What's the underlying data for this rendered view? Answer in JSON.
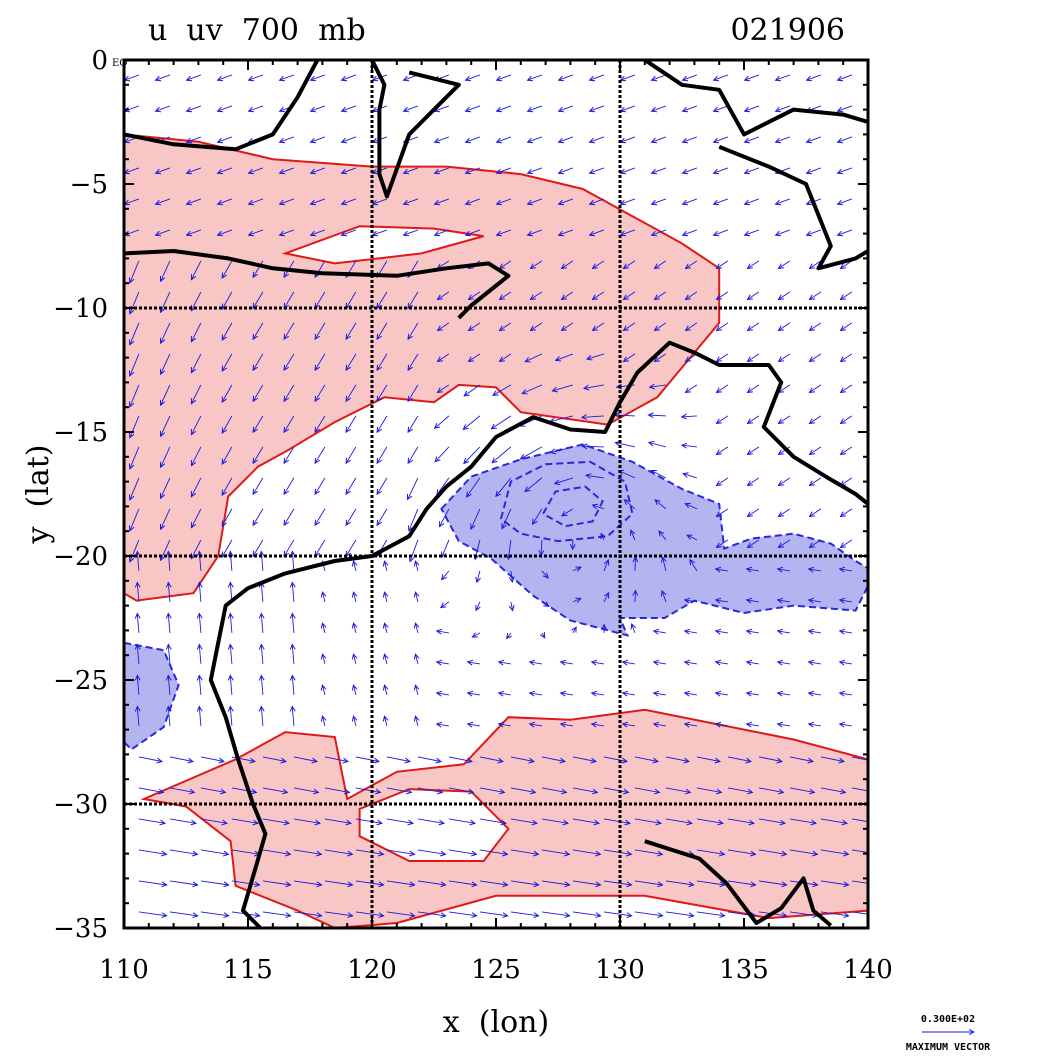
{
  "chart_data": {
    "type": "contour-vector-map",
    "title_left": "u  uv  700  mb",
    "title_right": "021906",
    "xlabel": "x  (lon)",
    "ylabel": "y  (lat)",
    "xlim": [
      110,
      140
    ],
    "ylim": [
      -35,
      0
    ],
    "x_ticks": [
      110,
      115,
      120,
      125,
      130,
      135,
      140
    ],
    "y_ticks": [
      0,
      -5,
      -10,
      -15,
      -20,
      -25,
      -30,
      -35
    ],
    "y_tick_labels": [
      "0",
      "−5",
      "−10",
      "−15",
      "−20",
      "−25",
      "−30",
      "−35"
    ],
    "x_tick_labels": [
      "110",
      "115",
      "120",
      "125",
      "130",
      "135",
      "140"
    ],
    "zero_tick_suffix": "EQ",
    "grid_lon": [
      120,
      130
    ],
    "grid_lat": [
      -10,
      -20,
      -30
    ],
    "grid": true,
    "vector_legend_value": "0.300E+02",
    "vector_legend_label": "MAXIMUM VECTOR",
    "colors": {
      "positive_fill": "#f9c6c6",
      "positive_contour": "#e01818",
      "negative_fill": "#b4b4f0",
      "negative_contour": "#2828e0",
      "coastline": "#000000",
      "vectors": "#1a1ae0"
    },
    "positive_regions": [
      {
        "name": "northern-band",
        "polygon": [
          [
            110,
            -3
          ],
          [
            113,
            -3.3
          ],
          [
            116,
            -4
          ],
          [
            120,
            -4.3
          ],
          [
            123,
            -4.3
          ],
          [
            126,
            -4.6
          ],
          [
            128.5,
            -5.2
          ],
          [
            130.5,
            -6.3
          ],
          [
            132.5,
            -7.4
          ],
          [
            134,
            -8.4
          ],
          [
            134,
            -10.6
          ],
          [
            133,
            -11.8
          ],
          [
            131.5,
            -13.6
          ],
          [
            129.5,
            -14.7
          ],
          [
            126,
            -14.2
          ],
          [
            125,
            -13.2
          ],
          [
            123.5,
            -13.1
          ],
          [
            122.5,
            -13.8
          ],
          [
            120.5,
            -13.6
          ],
          [
            118.5,
            -14.6
          ],
          [
            116.5,
            -15.8
          ],
          [
            115.4,
            -16.4
          ],
          [
            114.2,
            -17.6
          ],
          [
            113.8,
            -20
          ],
          [
            112.8,
            -21.5
          ],
          [
            110.5,
            -21.8
          ],
          [
            110,
            -21.5
          ]
        ]
      },
      {
        "name": "southern-band",
        "polygon": [
          [
            110.8,
            -29.8
          ],
          [
            114.5,
            -28.2
          ],
          [
            116.5,
            -27.1
          ],
          [
            118.5,
            -27.3
          ],
          [
            119,
            -29.8
          ],
          [
            121,
            -28.7
          ],
          [
            123.7,
            -28.4
          ],
          [
            125.5,
            -26.5
          ],
          [
            128,
            -26.6
          ],
          [
            131,
            -26.2
          ],
          [
            134,
            -26.8
          ],
          [
            137,
            -27.4
          ],
          [
            140,
            -28.2
          ],
          [
            140,
            -34.3
          ],
          [
            136,
            -34.6
          ],
          [
            131,
            -33.7
          ],
          [
            125,
            -33.7
          ],
          [
            121,
            -34.8
          ],
          [
            118.5,
            -35
          ],
          [
            117,
            -34.3
          ],
          [
            114.5,
            -33.3
          ],
          [
            114.3,
            -31.5
          ],
          [
            112.5,
            -30.1
          ]
        ]
      }
    ],
    "positive_holes": [
      {
        "name": "hole-north",
        "polygon": [
          [
            116.5,
            -7.8
          ],
          [
            119.5,
            -6.7
          ],
          [
            122.5,
            -6.8
          ],
          [
            124.5,
            -7.1
          ],
          [
            122,
            -7.8
          ],
          [
            118.5,
            -8.2
          ]
        ]
      },
      {
        "name": "hole-south",
        "polygon": [
          [
            119.5,
            -30.2
          ],
          [
            121.5,
            -29.4
          ],
          [
            124,
            -29.5
          ],
          [
            125.5,
            -31
          ],
          [
            124.5,
            -32.3
          ],
          [
            121.5,
            -32.3
          ],
          [
            119.5,
            -31.3
          ]
        ]
      }
    ],
    "negative_regions": [
      {
        "name": "central-low",
        "polygon": [
          [
            122.8,
            -18.1
          ],
          [
            124,
            -16.8
          ],
          [
            126,
            -16.1
          ],
          [
            128.5,
            -15.5
          ],
          [
            130.5,
            -16.2
          ],
          [
            132.5,
            -17.3
          ],
          [
            134,
            -17.9
          ],
          [
            134.2,
            -19.7
          ],
          [
            135.3,
            -19.3
          ],
          [
            137,
            -19.1
          ],
          [
            138.5,
            -19.5
          ],
          [
            139.5,
            -20.2
          ],
          [
            140,
            -20.5
          ],
          [
            140,
            -21.2
          ],
          [
            139.5,
            -22.2
          ],
          [
            137,
            -22
          ],
          [
            135,
            -22.3
          ],
          [
            133,
            -21.8
          ],
          [
            131.8,
            -22.5
          ],
          [
            130,
            -22.5
          ],
          [
            130.3,
            -23.2
          ],
          [
            128,
            -22.6
          ],
          [
            126.5,
            -21.6
          ],
          [
            124.8,
            -20.1
          ],
          [
            123.5,
            -19.4
          ]
        ]
      },
      {
        "name": "west-low",
        "polygon": [
          [
            110,
            -23.5
          ],
          [
            111.6,
            -23.8
          ],
          [
            112.2,
            -25.2
          ],
          [
            111.6,
            -26.9
          ],
          [
            110.3,
            -27.8
          ],
          [
            110,
            -27.5
          ]
        ]
      }
    ],
    "negative_inner_contours": [
      {
        "name": "inner-contour-1",
        "polygon": [
          [
            125.2,
            -18.5
          ],
          [
            125.6,
            -17
          ],
          [
            127,
            -16.3
          ],
          [
            128.8,
            -16.2
          ],
          [
            130.2,
            -17
          ],
          [
            130.5,
            -18.3
          ],
          [
            129.5,
            -19.2
          ],
          [
            127.5,
            -19.4
          ],
          [
            126,
            -19.1
          ]
        ]
      },
      {
        "name": "inner-contour-2",
        "polygon": [
          [
            126.9,
            -18.3
          ],
          [
            127.4,
            -17.4
          ],
          [
            128.6,
            -17.2
          ],
          [
            129.3,
            -17.8
          ],
          [
            128.9,
            -18.6
          ],
          [
            127.8,
            -18.8
          ]
        ]
      }
    ],
    "coastlines": [
      {
        "name": "australia-west-coast",
        "points": [
          [
            115.5,
            -35
          ],
          [
            114.8,
            -34.3
          ],
          [
            115.3,
            -32.6
          ],
          [
            115.7,
            -31.2
          ],
          [
            115.2,
            -30
          ],
          [
            114.6,
            -28.2
          ],
          [
            114.1,
            -26.5
          ],
          [
            113.5,
            -25
          ],
          [
            113.8,
            -23.5
          ],
          [
            114.1,
            -22
          ],
          [
            115,
            -21.3
          ],
          [
            116.5,
            -20.7
          ],
          [
            118.5,
            -20.2
          ],
          [
            120,
            -20
          ],
          [
            121.5,
            -19.2
          ],
          [
            122.2,
            -18.1
          ],
          [
            123,
            -17.2
          ],
          [
            124,
            -16.4
          ],
          [
            125,
            -15.2
          ],
          [
            126.5,
            -14.4
          ],
          [
            128,
            -14.9
          ],
          [
            129.4,
            -15
          ],
          [
            130,
            -13.8
          ],
          [
            130.7,
            -12.6
          ],
          [
            132,
            -11.4
          ],
          [
            133,
            -11.8
          ],
          [
            134,
            -12.3
          ],
          [
            136,
            -12.3
          ],
          [
            136.5,
            -13
          ],
          [
            135.8,
            -14.8
          ],
          [
            137,
            -16
          ],
          [
            138.3,
            -16.8
          ],
          [
            139.5,
            -17.5
          ],
          [
            140,
            -17.9
          ]
        ]
      },
      {
        "name": "australia-south-coast",
        "points": [
          [
            131,
            -31.5
          ],
          [
            133.2,
            -32.2
          ],
          [
            134.3,
            -33.2
          ],
          [
            135.5,
            -34.8
          ],
          [
            136.5,
            -34.2
          ],
          [
            137.4,
            -33
          ],
          [
            137.8,
            -34.3
          ],
          [
            138.5,
            -34.9
          ]
        ]
      },
      {
        "name": "java-and-lesser-sunda",
        "points": [
          [
            110,
            -7.8
          ],
          [
            112,
            -7.7
          ],
          [
            114.2,
            -8
          ],
          [
            116,
            -8.4
          ],
          [
            118,
            -8.6
          ],
          [
            121,
            -8.7
          ],
          [
            123,
            -8.4
          ],
          [
            124.7,
            -8.2
          ],
          [
            125.5,
            -8.7
          ],
          [
            124,
            -9.9
          ],
          [
            123.5,
            -10.4
          ]
        ]
      },
      {
        "name": "borneo-south",
        "points": [
          [
            110,
            -3
          ],
          [
            112,
            -3.4
          ],
          [
            114.5,
            -3.6
          ],
          [
            116,
            -3
          ],
          [
            117,
            -1.5
          ],
          [
            117.8,
            0
          ]
        ]
      },
      {
        "name": "sulawesi",
        "points": [
          [
            120,
            0
          ],
          [
            120.5,
            -1
          ],
          [
            120.3,
            -2
          ],
          [
            120.3,
            -4.6
          ],
          [
            120.6,
            -5.5
          ],
          [
            121.5,
            -3
          ],
          [
            122.5,
            -2
          ],
          [
            123.5,
            -1
          ],
          [
            121.5,
            -0.5
          ]
        ]
      },
      {
        "name": "new-guinea",
        "points": [
          [
            131,
            0
          ],
          [
            132.5,
            -1
          ],
          [
            134,
            -1.2
          ],
          [
            135,
            -3
          ],
          [
            137,
            -2
          ],
          [
            139,
            -2.2
          ],
          [
            140,
            -2.5
          ]
        ]
      },
      {
        "name": "new-guinea-south",
        "points": [
          [
            134,
            -3.5
          ],
          [
            136,
            -4.3
          ],
          [
            137.5,
            -5
          ],
          [
            138.5,
            -7.5
          ],
          [
            138,
            -8.4
          ],
          [
            139.5,
            -8
          ],
          [
            140,
            -7.7
          ]
        ]
      }
    ]
  }
}
